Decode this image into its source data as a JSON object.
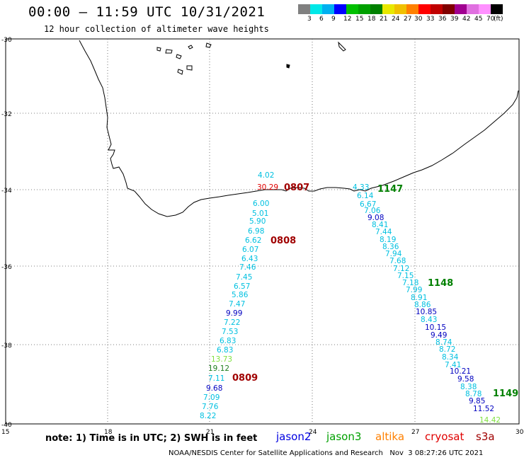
{
  "header": {
    "title": "00:00 – 11:59 UTC 10/31/2021",
    "subtitle": "12 hour collection of altimeter wave heights"
  },
  "legend": {
    "colors": [
      "#808080",
      "#00e8e8",
      "#00b0f0",
      "#0000ff",
      "#00c000",
      "#00a000",
      "#008000",
      "#e8e800",
      "#f0c000",
      "#ff8000",
      "#ff0000",
      "#c00000",
      "#800000",
      "#a00090",
      "#e070e0",
      "#ff90ff",
      "#000000"
    ],
    "labels": [
      "3",
      "6",
      "9",
      "12",
      "15",
      "18",
      "21",
      "24",
      "27",
      "30",
      "33",
      "36",
      "39",
      "42",
      "45",
      "70",
      "(ft)"
    ]
  },
  "axes": {
    "lat_labels": [
      "-30",
      "-32",
      "-34",
      "-36",
      "-38",
      "-40"
    ],
    "lon_labels": [
      "15",
      "18",
      "21",
      "24",
      "27",
      "30"
    ]
  },
  "track_labels": [
    {
      "text": "0807",
      "color": "#a00000"
    },
    {
      "text": "0808",
      "color": "#a00000"
    },
    {
      "text": "0809",
      "color": "#a00000"
    },
    {
      "text": "1147",
      "color": "#008000"
    },
    {
      "text": "1148",
      "color": "#008000"
    },
    {
      "text": "1149",
      "color": "#008000"
    }
  ],
  "readings": [
    {
      "text": "30.29",
      "color": "#e00000"
    },
    {
      "text": "4.02",
      "color": "#00c0e0"
    },
    {
      "text": "6.00",
      "color": "#00c0e0"
    },
    {
      "text": "5.01",
      "color": "#00c0e0"
    },
    {
      "text": "5.90",
      "color": "#00c0e0"
    },
    {
      "text": "6.98",
      "color": "#00c0e0"
    },
    {
      "text": "6.62",
      "color": "#00c0e0"
    },
    {
      "text": "6.07",
      "color": "#00c0e0"
    },
    {
      "text": "6.43",
      "color": "#00c0e0"
    },
    {
      "text": "7.46",
      "color": "#00c0e0"
    },
    {
      "text": "7.45",
      "color": "#00c0e0"
    },
    {
      "text": "6.57",
      "color": "#00c0e0"
    },
    {
      "text": "5.86",
      "color": "#00c0e0"
    },
    {
      "text": "7.47",
      "color": "#00c0e0"
    },
    {
      "text": "9.99",
      "color": "#0000c0"
    },
    {
      "text": "7.22",
      "color": "#00c0e0"
    },
    {
      "text": "7.53",
      "color": "#00c0e0"
    },
    {
      "text": "6.83",
      "color": "#00c0e0"
    },
    {
      "text": "6.83",
      "color": "#00c0e0"
    },
    {
      "text": "13.73",
      "color": "#80e040"
    },
    {
      "text": "19.12",
      "color": "#208020"
    },
    {
      "text": "7.11",
      "color": "#00c0e0"
    },
    {
      "text": "9.68",
      "color": "#0000c0"
    },
    {
      "text": "7.09",
      "color": "#00c0e0"
    },
    {
      "text": "7.76",
      "color": "#00c0e0"
    },
    {
      "text": "8.22",
      "color": "#00c0e0"
    },
    {
      "text": "4.33",
      "color": "#00c0e0"
    },
    {
      "text": "6.14",
      "color": "#00c0e0"
    },
    {
      "text": "6.67",
      "color": "#00c0e0"
    },
    {
      "text": "7.06",
      "color": "#00c0e0"
    },
    {
      "text": "9.08",
      "color": "#0000c0"
    },
    {
      "text": "8.41",
      "color": "#00c0e0"
    },
    {
      "text": "7.44",
      "color": "#00c0e0"
    },
    {
      "text": "8.19",
      "color": "#00c0e0"
    },
    {
      "text": "8.36",
      "color": "#00c0e0"
    },
    {
      "text": "7.94",
      "color": "#00c0e0"
    },
    {
      "text": "7.68",
      "color": "#00c0e0"
    },
    {
      "text": "7.12",
      "color": "#00c0e0"
    },
    {
      "text": "7.15",
      "color": "#00c0e0"
    },
    {
      "text": "7.18",
      "color": "#00c0e0"
    },
    {
      "text": "7.99",
      "color": "#00c0e0"
    },
    {
      "text": "8.91",
      "color": "#00c0e0"
    },
    {
      "text": "8.86",
      "color": "#00c0e0"
    },
    {
      "text": "10.85",
      "color": "#0000c0"
    },
    {
      "text": "8.43",
      "color": "#00c0e0"
    },
    {
      "text": "10.15",
      "color": "#0000c0"
    },
    {
      "text": "9.49",
      "color": "#0000c0"
    },
    {
      "text": "8.74",
      "color": "#00c0e0"
    },
    {
      "text": "8.72",
      "color": "#00c0e0"
    },
    {
      "text": "8.34",
      "color": "#00c0e0"
    },
    {
      "text": "7.41",
      "color": "#00c0e0"
    },
    {
      "text": "10.21",
      "color": "#0000c0"
    },
    {
      "text": "9.58",
      "color": "#0000c0"
    },
    {
      "text": "8.38",
      "color": "#00c0e0"
    },
    {
      "text": "8.78",
      "color": "#00c0e0"
    },
    {
      "text": "9.85",
      "color": "#0000c0"
    },
    {
      "text": "11.52",
      "color": "#0000c0"
    },
    {
      "text": "14.42",
      "color": "#80e040"
    }
  ],
  "footer": {
    "note": "note: 1) Time is in UTC; 2) SWH is in feet",
    "satellites": [
      {
        "name": "jason2",
        "color": "#0000e0"
      },
      {
        "name": "jason3",
        "color": "#00a000"
      },
      {
        "name": "altika",
        "color": "#ff8000"
      },
      {
        "name": "cryosat",
        "color": "#e00000"
      },
      {
        "name": "s3a",
        "color": "#a00000"
      }
    ],
    "credit": "NOAA/NESDIS Center for Satellite Applications and Research",
    "timestamp": "Nov  3 08:27:26 UTC 2021"
  }
}
